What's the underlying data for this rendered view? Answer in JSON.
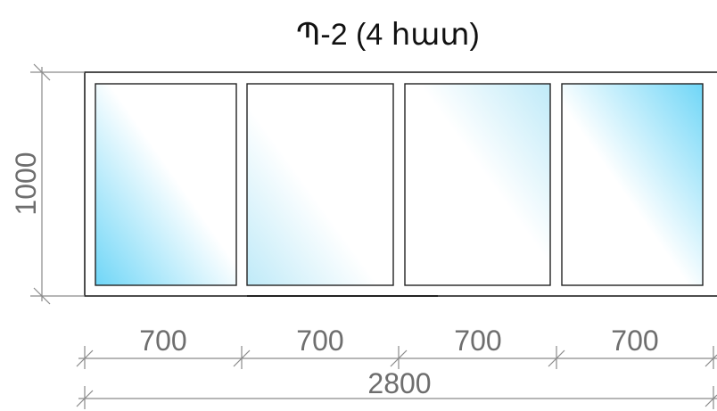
{
  "title": "Պ-2 (4 հատ)",
  "height_dimension": "1000",
  "pane_widths": [
    "700",
    "700",
    "700",
    "700"
  ],
  "total_width": "2800",
  "panes": [
    {
      "gradient_direction": "bottom-left"
    },
    {
      "gradient_direction": "bottom-left"
    },
    {
      "gradient_direction": "top-right"
    },
    {
      "gradient_direction": "top-right"
    }
  ],
  "colors": {
    "glass_light": "#ffffff",
    "glass_blue": "#6fd6f7",
    "frame_stroke": "#222222",
    "dimension": "#8a8a8a"
  }
}
